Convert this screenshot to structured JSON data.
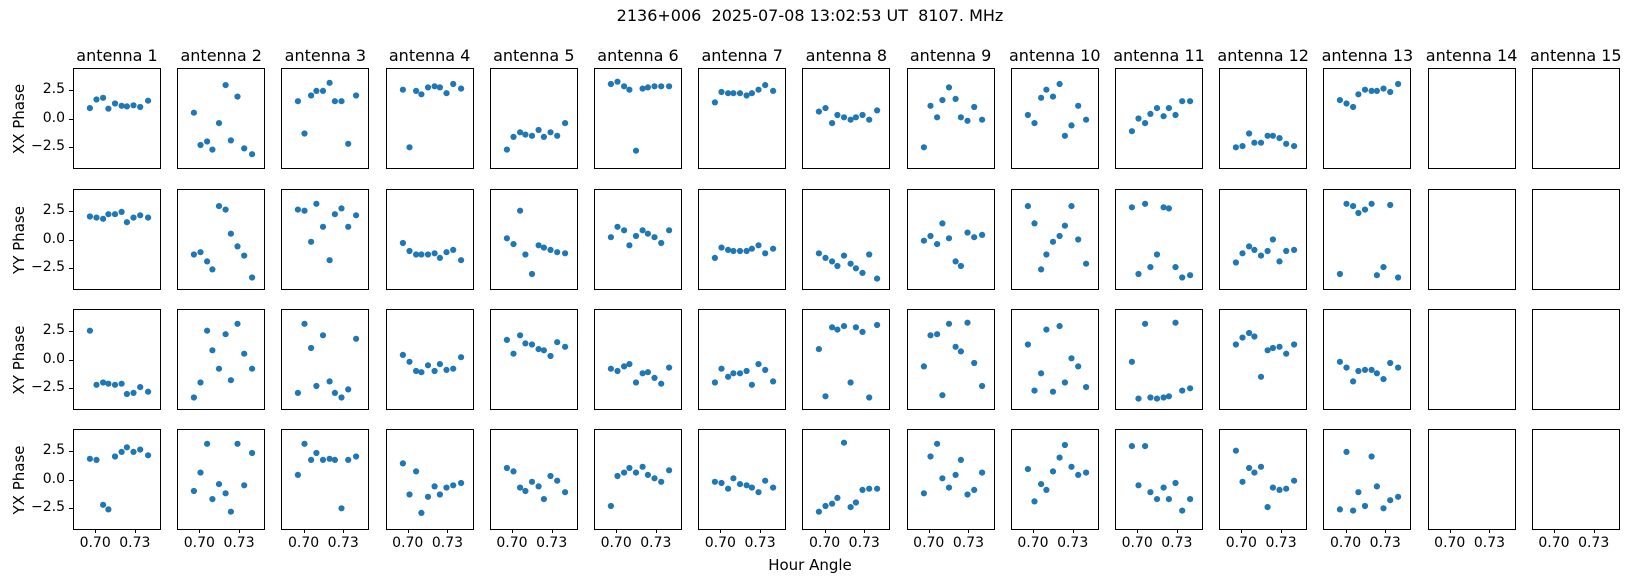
{
  "title": "2136+006  2025-07-08 13:02:53 UT  8107. MHz",
  "xlabel": "Hour Angle",
  "row_labels": [
    "XX Phase",
    "YY Phase",
    "XY Phase",
    "YX Phase"
  ],
  "col_labels": [
    "antenna 1",
    "antenna 2",
    "antenna 3",
    "antenna 4",
    "antenna 5",
    "antenna 6",
    "antenna 7",
    "antenna 8",
    "antenna 9",
    "antenna 10",
    "antenna 11",
    "antenna 12",
    "antenna 13",
    "antenna 14",
    "antenna 15"
  ],
  "axes": {
    "xlim": [
      0.684,
      0.749
    ],
    "ylim": [
      -4.3,
      4.3
    ],
    "xticks": [
      0.7,
      0.73
    ],
    "xtick_labels": [
      "0.70",
      "0.73"
    ],
    "yticks": [
      2.5,
      0.0,
      -2.5
    ],
    "ytick_labels": [
      "2.5",
      "0.0",
      "−2.5"
    ]
  },
  "marker_color": "#1f77b4",
  "chart_data": {
    "type": "scatter",
    "x": [
      0.696,
      0.701,
      0.706,
      0.71,
      0.715,
      0.72,
      0.724,
      0.729,
      0.734,
      0.74
    ],
    "rows": [
      {
        "label": "XX Phase",
        "series": [
          {
            "antenna": "antenna 1",
            "y": [
              0.9,
              1.65,
              1.8,
              0.85,
              1.3,
              1.1,
              1.05,
              1.15,
              1.0,
              1.55
            ]
          },
          {
            "antenna": "antenna 2",
            "y": [
              0.5,
              -2.3,
              -2.0,
              -2.7,
              -0.4,
              2.9,
              -1.9,
              1.9,
              -2.6,
              -3.1
            ]
          },
          {
            "antenna": "antenna 3",
            "y": [
              1.5,
              -1.3,
              2.0,
              2.4,
              2.4,
              3.1,
              1.5,
              1.5,
              -2.2,
              2.0
            ]
          },
          {
            "antenna": "antenna 4",
            "y": [
              2.5,
              -2.5,
              2.4,
              2.1,
              2.7,
              2.8,
              2.7,
              2.2,
              3.0,
              2.6
            ]
          },
          {
            "antenna": "antenna 5",
            "y": [
              -2.7,
              -1.6,
              -1.2,
              -1.4,
              -1.5,
              -1.0,
              -1.6,
              -1.2,
              -1.5,
              -0.4
            ]
          },
          {
            "antenna": "antenna 6",
            "y": [
              3.0,
              3.2,
              2.8,
              2.5,
              -2.8,
              2.6,
              2.7,
              2.8,
              2.8,
              2.8
            ]
          },
          {
            "antenna": "antenna 7",
            "y": [
              1.4,
              2.3,
              2.2,
              2.2,
              2.2,
              2.0,
              2.2,
              2.5,
              2.9,
              2.4
            ]
          },
          {
            "antenna": "antenna 8",
            "y": [
              0.6,
              0.9,
              -0.4,
              0.3,
              0.1,
              -0.1,
              0.1,
              0.3,
              -0.1,
              0.7
            ]
          },
          {
            "antenna": "antenna 9",
            "y": [
              -2.5,
              1.1,
              0.1,
              1.6,
              2.7,
              1.7,
              0.1,
              -0.2,
              1.0,
              -0.1
            ]
          },
          {
            "antenna": "antenna 10",
            "y": [
              0.3,
              -0.4,
              1.8,
              2.5,
              1.9,
              3.0,
              -1.5,
              -0.6,
              1.1,
              -0.1
            ]
          },
          {
            "antenna": "antenna 11",
            "y": [
              -1.1,
              0.0,
              -0.4,
              0.4,
              0.9,
              0.2,
              0.9,
              0.3,
              1.5,
              1.5
            ]
          },
          {
            "antenna": "antenna 12",
            "y": [
              -2.5,
              -2.4,
              -1.3,
              -2.1,
              -2.1,
              -1.5,
              -1.5,
              -1.7,
              -2.2,
              -2.4
            ]
          },
          {
            "antenna": "antenna 13",
            "y": [
              1.6,
              1.3,
              1.0,
              2.1,
              2.5,
              2.4,
              2.4,
              2.6,
              2.3,
              3.0
            ]
          },
          {
            "antenna": "antenna 14",
            "y": []
          },
          {
            "antenna": "antenna 15",
            "y": []
          }
        ]
      },
      {
        "label": "YY Phase",
        "series": [
          {
            "antenna": "antenna 1",
            "y": [
              2.0,
              1.9,
              1.8,
              2.2,
              2.2,
              2.4,
              1.5,
              1.9,
              2.1,
              1.9
            ]
          },
          {
            "antenna": "antenna 2",
            "y": [
              -1.3,
              -1.1,
              -1.9,
              -2.6,
              2.9,
              2.6,
              0.5,
              -0.6,
              -1.4,
              -3.3
            ]
          },
          {
            "antenna": "antenna 3",
            "y": [
              2.6,
              2.5,
              -0.2,
              3.1,
              1.1,
              -1.8,
              2.2,
              2.7,
              1.1,
              2.1
            ]
          },
          {
            "antenna": "antenna 4",
            "y": [
              -0.3,
              -1.0,
              -1.3,
              -1.3,
              -1.3,
              -1.2,
              -1.6,
              -1.1,
              -0.9,
              -1.8
            ]
          },
          {
            "antenna": "antenna 5",
            "y": [
              0.1,
              -0.4,
              2.5,
              -1.3,
              -3.0,
              -0.5,
              -0.7,
              -0.9,
              -1.1,
              -1.2
            ]
          },
          {
            "antenna": "antenna 6",
            "y": [
              0.2,
              1.1,
              0.8,
              -0.5,
              0.3,
              0.8,
              0.5,
              0.2,
              -0.3,
              0.8
            ]
          },
          {
            "antenna": "antenna 7",
            "y": [
              -1.6,
              -0.7,
              -0.9,
              -1.0,
              -1.0,
              -1.0,
              -0.8,
              -0.5,
              -1.2,
              -0.8
            ]
          },
          {
            "antenna": "antenna 8",
            "y": [
              -1.2,
              -1.6,
              -1.9,
              -2.3,
              -1.4,
              -2.1,
              -2.5,
              -2.9,
              -1.3,
              -3.4
            ]
          },
          {
            "antenna": "antenna 9",
            "y": [
              -0.1,
              0.3,
              -0.4,
              1.4,
              0.1,
              -1.9,
              -2.3,
              0.6,
              0.2,
              0.4
            ]
          },
          {
            "antenna": "antenna 10",
            "y": [
              2.9,
              1.4,
              -2.6,
              -1.3,
              -0.2,
              0.3,
              1.2,
              2.9,
              0.0,
              -2.1
            ]
          },
          {
            "antenna": "antenna 11",
            "y": [
              2.8,
              -3.0,
              3.1,
              -2.4,
              -1.3,
              2.8,
              2.7,
              -2.4,
              -3.3,
              -3.1
            ]
          },
          {
            "antenna": "antenna 12",
            "y": [
              -2.0,
              -1.2,
              -0.6,
              -0.9,
              -1.4,
              -1.0,
              0.0,
              -1.9,
              -1.0,
              -0.9
            ]
          },
          {
            "antenna": "antenna 13",
            "y": [
              -3.0,
              3.1,
              2.9,
              2.3,
              2.6,
              3.1,
              -3.1,
              -2.4,
              3.0,
              -3.3
            ]
          },
          {
            "antenna": "antenna 14",
            "y": []
          },
          {
            "antenna": "antenna 15",
            "y": []
          }
        ]
      },
      {
        "label": "XY Phase",
        "series": [
          {
            "antenna": "antenna 1",
            "y": [
              2.5,
              -2.2,
              -2.0,
              -2.1,
              -2.2,
              -2.1,
              -3.0,
              -2.9,
              -2.4,
              -2.8
            ]
          },
          {
            "antenna": "antenna 2",
            "y": [
              -3.3,
              -2.0,
              2.5,
              0.8,
              -0.8,
              2.2,
              -1.8,
              3.1,
              0.5,
              -0.8
            ]
          },
          {
            "antenna": "antenna 3",
            "y": [
              -2.9,
              3.1,
              1.0,
              -2.3,
              2.1,
              -1.9,
              -2.9,
              -3.3,
              -2.6,
              1.8
            ]
          },
          {
            "antenna": "antenna 4",
            "y": [
              0.4,
              -0.2,
              -1.0,
              -1.1,
              -0.5,
              -1.0,
              -0.4,
              -0.9,
              -0.8,
              0.2
            ]
          },
          {
            "antenna": "antenna 5",
            "y": [
              1.7,
              0.5,
              2.1,
              1.4,
              1.3,
              0.9,
              0.8,
              0.3,
              1.5,
              1.1
            ]
          },
          {
            "antenna": "antenna 6",
            "y": [
              -0.8,
              -1.0,
              -0.6,
              -0.4,
              -2.0,
              -1.2,
              -1.1,
              -1.6,
              -2.1,
              -0.7
            ]
          },
          {
            "antenna": "antenna 7",
            "y": [
              -2.0,
              -0.8,
              -1.5,
              -1.2,
              -1.2,
              -1.0,
              -2.2,
              -0.4,
              -0.9,
              -1.9
            ]
          },
          {
            "antenna": "antenna 8",
            "y": [
              0.9,
              -3.2,
              2.8,
              2.6,
              2.9,
              -2.0,
              2.8,
              2.4,
              -3.3,
              3.0
            ]
          },
          {
            "antenna": "antenna 9",
            "y": [
              -0.6,
              2.1,
              2.2,
              -3.1,
              3.1,
              1.1,
              0.7,
              3.2,
              -0.3,
              -2.3
            ]
          },
          {
            "antenna": "antenna 10",
            "y": [
              1.3,
              -2.7,
              -1.2,
              2.6,
              -2.8,
              2.9,
              -2.0,
              0.1,
              -0.6,
              -2.4
            ]
          },
          {
            "antenna": "antenna 11",
            "y": [
              -0.2,
              -3.4,
              3.1,
              -3.3,
              -3.4,
              -3.3,
              -3.2,
              3.2,
              -2.7,
              -2.5
            ]
          },
          {
            "antenna": "antenna 12",
            "y": [
              1.3,
              1.9,
              2.3,
              2.0,
              -1.5,
              0.8,
              1.0,
              1.1,
              0.5,
              1.3
            ]
          },
          {
            "antenna": "antenna 13",
            "y": [
              -0.2,
              -0.7,
              -1.9,
              -1.0,
              -0.9,
              -0.9,
              -1.2,
              -1.7,
              -0.3,
              -0.7
            ]
          },
          {
            "antenna": "antenna 14",
            "y": []
          },
          {
            "antenna": "antenna 15",
            "y": []
          }
        ]
      },
      {
        "label": "YX Phase",
        "series": [
          {
            "antenna": "antenna 1",
            "y": [
              1.8,
              1.7,
              -2.2,
              -2.6,
              2.0,
              2.4,
              2.8,
              2.4,
              2.6,
              2.1
            ]
          },
          {
            "antenna": "antenna 2",
            "y": [
              -1.0,
              0.6,
              3.1,
              -1.7,
              -0.4,
              -1.2,
              -2.8,
              3.1,
              -0.5,
              2.3
            ]
          },
          {
            "antenna": "antenna 3",
            "y": [
              0.4,
              3.1,
              1.7,
              2.3,
              1.7,
              1.8,
              1.7,
              -2.5,
              1.7,
              2.0
            ]
          },
          {
            "antenna": "antenna 4",
            "y": [
              1.4,
              -1.3,
              0.7,
              -2.9,
              -1.5,
              -0.6,
              -1.3,
              -0.7,
              -0.5,
              -0.3
            ]
          },
          {
            "antenna": "antenna 5",
            "y": [
              1.0,
              0.7,
              -0.7,
              -1.0,
              -0.2,
              -0.6,
              -1.7,
              0.3,
              -0.1,
              -1.1
            ]
          },
          {
            "antenna": "antenna 6",
            "y": [
              -2.3,
              0.3,
              0.6,
              1.0,
              0.6,
              1.1,
              0.4,
              0.1,
              -0.2,
              0.8
            ]
          },
          {
            "antenna": "antenna 7",
            "y": [
              -0.2,
              -0.3,
              -0.8,
              0.1,
              -0.4,
              -0.5,
              -0.7,
              -1.1,
              -0.1,
              -0.7
            ]
          },
          {
            "antenna": "antenna 8",
            "y": [
              -2.8,
              -2.3,
              -2.1,
              -1.6,
              3.2,
              -2.4,
              -2.0,
              -0.9,
              -0.8,
              -0.8
            ]
          },
          {
            "antenna": "antenna 9",
            "y": [
              -1.2,
              2.0,
              3.1,
              0.1,
              -0.7,
              0.4,
              1.7,
              -1.3,
              -0.9,
              0.6
            ]
          },
          {
            "antenna": "antenna 10",
            "y": [
              0.9,
              -1.9,
              -0.4,
              -0.9,
              0.7,
              1.9,
              3.0,
              1.1,
              0.4,
              0.6
            ]
          },
          {
            "antenna": "antenna 11",
            "y": [
              2.9,
              -0.5,
              2.9,
              -1.1,
              -1.7,
              -0.7,
              -1.7,
              -0.3,
              -2.7,
              -1.7
            ]
          },
          {
            "antenna": "antenna 12",
            "y": [
              2.5,
              -0.2,
              1.0,
              0.6,
              1.1,
              -2.4,
              -0.7,
              -0.9,
              -0.8,
              -0.1
            ]
          },
          {
            "antenna": "antenna 13",
            "y": [
              -2.6,
              2.4,
              -2.7,
              -1.1,
              -2.3,
              2.0,
              -0.6,
              -2.5,
              -1.8,
              -1.5
            ]
          },
          {
            "antenna": "antenna 14",
            "y": []
          },
          {
            "antenna": "antenna 15",
            "y": []
          }
        ]
      }
    ]
  }
}
